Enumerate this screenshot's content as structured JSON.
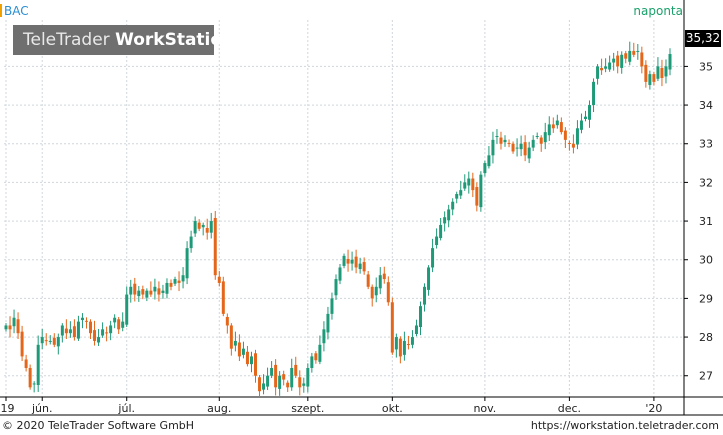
{
  "header": {
    "symbol": "BAC",
    "interval": "naponta",
    "logo_light": "TeleTrader ",
    "logo_bold": "WorkStation",
    "last_price": "35,32"
  },
  "footer": {
    "copyright": "© 2020 TeleTrader Software GmbH",
    "url": "https://workstation.teletrader.com"
  },
  "colors": {
    "up": "#1f9a78",
    "down": "#e4661a",
    "grid": "#cfd6dc",
    "axis": "#000000",
    "accent": "#f0a000"
  },
  "chart_data": {
    "type": "candlestick",
    "title": "BAC",
    "interval": "naponta",
    "ylim": [
      26.45,
      36.2
    ],
    "y_ticks": [
      {
        "value": 27,
        "label": "27"
      },
      {
        "value": 28,
        "label": "28"
      },
      {
        "value": 29,
        "label": "29"
      },
      {
        "value": 30,
        "label": "30"
      },
      {
        "value": 31,
        "label": "31"
      },
      {
        "value": 32,
        "label": "32"
      },
      {
        "value": 33,
        "label": "33"
      },
      {
        "value": 34,
        "label": "34"
      },
      {
        "value": 35,
        "label": "35"
      }
    ],
    "x_ticks": [
      {
        "index": 0,
        "label": "'19"
      },
      {
        "index": 9,
        "label": "jún."
      },
      {
        "index": 30,
        "label": "júl."
      },
      {
        "index": 53,
        "label": "aug."
      },
      {
        "index": 75,
        "label": "szept."
      },
      {
        "index": 96,
        "label": "okt."
      },
      {
        "index": 119,
        "label": "nov."
      },
      {
        "index": 140,
        "label": "dec."
      },
      {
        "index": 161,
        "label": "'20"
      }
    ],
    "last_value": 35.32,
    "closes": [
      28.3,
      28.2,
      28.5,
      28.1,
      27.5,
      27.2,
      26.7,
      26.8,
      27.8,
      28.0,
      27.9,
      27.9,
      27.8,
      28.0,
      28.3,
      28.1,
      28.2,
      28.0,
      28.4,
      28.5,
      28.4,
      28.1,
      27.9,
      28.0,
      28.2,
      28.1,
      28.3,
      28.5,
      28.2,
      28.4,
      29.1,
      29.3,
      29.1,
      29.2,
      29.1,
      29.2,
      29.1,
      29.3,
      29.1,
      29.2,
      29.4,
      29.3,
      29.5,
      29.4,
      29.6,
      30.3,
      30.6,
      31.0,
      30.8,
      30.9,
      30.7,
      31.0,
      29.6,
      29.4,
      28.6,
      28.3,
      27.7,
      27.9,
      27.5,
      27.7,
      27.3,
      27.5,
      27.0,
      26.6,
      26.8,
      27.0,
      27.2,
      26.7,
      27.0,
      26.9,
      26.7,
      27.2,
      27.0,
      26.7,
      26.8,
      27.2,
      27.5,
      27.4,
      27.8,
      28.2,
      28.6,
      29.0,
      29.5,
      29.8,
      30.1,
      29.9,
      30.0,
      29.8,
      29.9,
      29.7,
      29.3,
      29.0,
      29.3,
      29.6,
      29.5,
      28.9,
      27.6,
      28.0,
      27.5,
      27.9,
      27.8,
      28.0,
      28.3,
      28.8,
      29.3,
      29.8,
      30.3,
      30.6,
      30.9,
      31.1,
      31.3,
      31.5,
      31.7,
      31.8,
      32.0,
      32.1,
      31.8,
      31.4,
      32.2,
      32.5,
      32.7,
      33.1,
      33.2,
      33.0,
      33.1,
      33.0,
      32.8,
      32.9,
      33.0,
      32.7,
      32.9,
      33.1,
      33.2,
      33.0,
      33.3,
      33.5,
      33.4,
      33.6,
      33.3,
      33.1,
      33.0,
      32.9,
      33.4,
      33.6,
      33.7,
      34.0,
      34.6,
      35.0,
      34.9,
      35.0,
      35.1,
      35.2,
      35.0,
      35.3,
      35.2,
      35.4,
      35.3,
      35.4,
      35.0,
      34.6,
      34.8,
      34.6,
      35.0,
      34.7,
      35.0,
      35.32
    ]
  }
}
